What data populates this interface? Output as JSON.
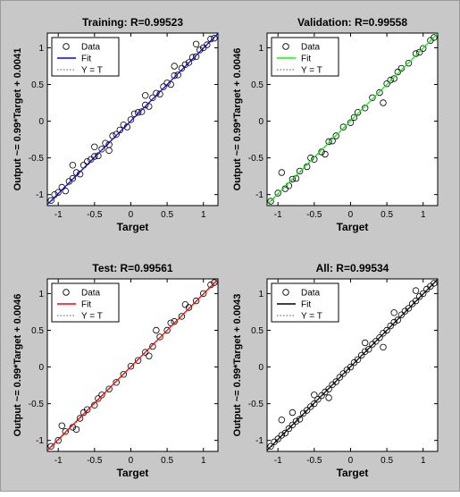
{
  "figure": {
    "background": "#c8c8c8"
  },
  "panels": [
    {
      "title": "Training: R=0.99523",
      "ylabel": "Output ~= 0.99*Target + 0.0041",
      "xlabel": "Target",
      "fit_color": "#0000ff",
      "legend": [
        "Data",
        "Fit",
        "Y = T"
      ]
    },
    {
      "title": "Validation: R=0.99558",
      "ylabel": "Output ~= 0.99*Target + 0.0046",
      "xlabel": "Target",
      "fit_color": "#00ff00",
      "legend": [
        "Data",
        "Fit",
        "Y = T"
      ]
    },
    {
      "title": "Test: R=0.99561",
      "ylabel": "Output ~= 0.99*Target + 0.0046",
      "xlabel": "Target",
      "fit_color": "#ff0000",
      "legend": [
        "Data",
        "Fit",
        "Y = T"
      ]
    },
    {
      "title": "All: R=0.99534",
      "ylabel": "Output ~= 0.99*Target + 0.0043",
      "xlabel": "Target",
      "fit_color": "#000000",
      "legend": [
        "Data",
        "Fit",
        "Y = T"
      ]
    }
  ],
  "chart_data": [
    {
      "type": "scatter",
      "title": "Training: R=0.99523",
      "xlabel": "Target",
      "ylabel": "Output ~= 0.99*Target + 0.0041",
      "xlim": [
        -1.15,
        1.2
      ],
      "ylim": [
        -1.15,
        1.2
      ],
      "xticks": [
        -1,
        -0.5,
        0,
        0.5,
        1
      ],
      "yticks": [
        -1,
        -0.5,
        0,
        0.5,
        1
      ],
      "fit": {
        "slope": 0.99,
        "intercept": 0.0041
      },
      "identity_line": true,
      "grid": false,
      "legend_position": "top-left",
      "series": [
        {
          "name": "Data",
          "points": [
            [
              -1.1,
              -1.08
            ],
            [
              -1.05,
              -1.0
            ],
            [
              -1.0,
              -0.97
            ],
            [
              -0.95,
              -0.9
            ],
            [
              -0.9,
              -0.95
            ],
            [
              -0.85,
              -0.82
            ],
            [
              -0.8,
              -0.78
            ],
            [
              -0.75,
              -0.7
            ],
            [
              -0.7,
              -0.72
            ],
            [
              -0.65,
              -0.6
            ],
            [
              -0.6,
              -0.55
            ],
            [
              -0.55,
              -0.52
            ],
            [
              -0.5,
              -0.48
            ],
            [
              -0.45,
              -0.47
            ],
            [
              -0.4,
              -0.38
            ],
            [
              -0.35,
              -0.3
            ],
            [
              -0.3,
              -0.32
            ],
            [
              -0.25,
              -0.2
            ],
            [
              -0.2,
              -0.18
            ],
            [
              -0.15,
              -0.12
            ],
            [
              -0.1,
              -0.05
            ],
            [
              -0.05,
              -0.08
            ],
            [
              0.0,
              0.02
            ],
            [
              0.05,
              0.1
            ],
            [
              0.1,
              0.12
            ],
            [
              0.15,
              0.13
            ],
            [
              0.2,
              0.22
            ],
            [
              0.25,
              0.2
            ],
            [
              0.3,
              0.32
            ],
            [
              0.35,
              0.38
            ],
            [
              0.4,
              0.37
            ],
            [
              0.45,
              0.47
            ],
            [
              0.5,
              0.52
            ],
            [
              0.55,
              0.5
            ],
            [
              0.6,
              0.62
            ],
            [
              0.65,
              0.63
            ],
            [
              0.7,
              0.72
            ],
            [
              0.75,
              0.77
            ],
            [
              0.8,
              0.8
            ],
            [
              0.85,
              0.87
            ],
            [
              0.9,
              0.88
            ],
            [
              0.95,
              0.97
            ],
            [
              1.0,
              1.0
            ],
            [
              1.05,
              1.04
            ],
            [
              1.1,
              1.12
            ],
            [
              1.15,
              1.13
            ],
            [
              -0.5,
              -0.35
            ],
            [
              -0.3,
              -0.4
            ],
            [
              0.2,
              0.35
            ],
            [
              0.6,
              0.75
            ],
            [
              -0.8,
              -0.6
            ],
            [
              0.9,
              1.05
            ]
          ]
        }
      ]
    },
    {
      "type": "scatter",
      "title": "Validation: R=0.99558",
      "xlabel": "Target",
      "ylabel": "Output ~= 0.99*Target + 0.0046",
      "xlim": [
        -1.15,
        1.2
      ],
      "ylim": [
        -1.15,
        1.2
      ],
      "xticks": [
        -1,
        -0.5,
        0,
        0.5,
        1
      ],
      "yticks": [
        -1,
        -0.5,
        0,
        0.5,
        1
      ],
      "fit": {
        "slope": 0.99,
        "intercept": 0.0046
      },
      "identity_line": true,
      "grid": false,
      "legend_position": "top-left",
      "series": [
        {
          "name": "Data",
          "points": [
            [
              -1.1,
              -1.09
            ],
            [
              -1.0,
              -0.98
            ],
            [
              -0.9,
              -0.92
            ],
            [
              -0.8,
              -0.79
            ],
            [
              -0.75,
              -0.78
            ],
            [
              -0.7,
              -0.68
            ],
            [
              -0.6,
              -0.62
            ],
            [
              -0.55,
              -0.5
            ],
            [
              -0.5,
              -0.52
            ],
            [
              -0.4,
              -0.42
            ],
            [
              -0.3,
              -0.28
            ],
            [
              -0.25,
              -0.27
            ],
            [
              -0.2,
              -0.2
            ],
            [
              -0.1,
              -0.08
            ],
            [
              0.0,
              -0.02
            ],
            [
              0.05,
              0.05
            ],
            [
              0.1,
              0.12
            ],
            [
              0.2,
              0.18
            ],
            [
              0.3,
              0.32
            ],
            [
              0.4,
              0.39
            ],
            [
              0.5,
              0.51
            ],
            [
              0.55,
              0.56
            ],
            [
              0.6,
              0.58
            ],
            [
              0.7,
              0.72
            ],
            [
              0.8,
              0.79
            ],
            [
              0.9,
              0.92
            ],
            [
              1.0,
              0.99
            ],
            [
              1.1,
              1.1
            ],
            [
              1.15,
              1.14
            ],
            [
              -0.95,
              -0.7
            ],
            [
              0.45,
              0.25
            ],
            [
              -0.35,
              -0.45
            ],
            [
              -0.85,
              -0.88
            ],
            [
              0.65,
              0.67
            ],
            [
              0.95,
              0.94
            ]
          ]
        }
      ]
    },
    {
      "type": "scatter",
      "title": "Test: R=0.99561",
      "xlabel": "Target",
      "ylabel": "Output ~= 0.99*Target + 0.0046",
      "xlim": [
        -1.15,
        1.2
      ],
      "ylim": [
        -1.15,
        1.2
      ],
      "xticks": [
        -1,
        -0.5,
        0,
        0.5,
        1
      ],
      "yticks": [
        -1,
        -0.5,
        0,
        0.5,
        1
      ],
      "fit": {
        "slope": 0.99,
        "intercept": 0.0046
      },
      "identity_line": true,
      "grid": false,
      "legend_position": "top-left",
      "series": [
        {
          "name": "Data",
          "points": [
            [
              -1.1,
              -1.08
            ],
            [
              -1.0,
              -1.0
            ],
            [
              -0.9,
              -0.88
            ],
            [
              -0.8,
              -0.82
            ],
            [
              -0.7,
              -0.7
            ],
            [
              -0.65,
              -0.62
            ],
            [
              -0.6,
              -0.58
            ],
            [
              -0.5,
              -0.52
            ],
            [
              -0.45,
              -0.43
            ],
            [
              -0.4,
              -0.38
            ],
            [
              -0.3,
              -0.3
            ],
            [
              -0.2,
              -0.21
            ],
            [
              -0.1,
              -0.1
            ],
            [
              0.0,
              0.01
            ],
            [
              0.1,
              0.09
            ],
            [
              0.2,
              0.2
            ],
            [
              0.3,
              0.28
            ],
            [
              0.4,
              0.41
            ],
            [
              0.5,
              0.5
            ],
            [
              0.55,
              0.6
            ],
            [
              0.6,
              0.62
            ],
            [
              0.7,
              0.69
            ],
            [
              0.8,
              0.81
            ],
            [
              0.9,
              0.9
            ],
            [
              1.0,
              1.0
            ],
            [
              1.1,
              1.12
            ],
            [
              1.15,
              1.15
            ],
            [
              -0.75,
              -0.85
            ],
            [
              0.35,
              0.5
            ],
            [
              -0.95,
              -0.8
            ],
            [
              0.75,
              0.85
            ],
            [
              0.25,
              0.15
            ]
          ]
        }
      ]
    },
    {
      "type": "scatter",
      "title": "All: R=0.99534",
      "xlabel": "Target",
      "ylabel": "Output ~= 0.99*Target + 0.0043",
      "xlim": [
        -1.15,
        1.2
      ],
      "ylim": [
        -1.15,
        1.2
      ],
      "xticks": [
        -1,
        -0.5,
        0,
        0.5,
        1
      ],
      "yticks": [
        -1,
        -0.5,
        0,
        0.5,
        1
      ],
      "fit": {
        "slope": 0.99,
        "intercept": 0.0043
      },
      "identity_line": true,
      "grid": false,
      "legend_position": "top-left",
      "series": [
        {
          "name": "Data",
          "points": [
            [
              -1.1,
              -1.08
            ],
            [
              -1.05,
              -1.02
            ],
            [
              -1.0,
              -0.98
            ],
            [
              -0.95,
              -0.93
            ],
            [
              -0.9,
              -0.9
            ],
            [
              -0.85,
              -0.84
            ],
            [
              -0.8,
              -0.79
            ],
            [
              -0.75,
              -0.74
            ],
            [
              -0.7,
              -0.71
            ],
            [
              -0.65,
              -0.63
            ],
            [
              -0.6,
              -0.59
            ],
            [
              -0.55,
              -0.54
            ],
            [
              -0.5,
              -0.5
            ],
            [
              -0.45,
              -0.44
            ],
            [
              -0.4,
              -0.39
            ],
            [
              -0.35,
              -0.34
            ],
            [
              -0.3,
              -0.3
            ],
            [
              -0.25,
              -0.24
            ],
            [
              -0.2,
              -0.2
            ],
            [
              -0.15,
              -0.14
            ],
            [
              -0.1,
              -0.09
            ],
            [
              -0.05,
              -0.04
            ],
            [
              0.0,
              0.0
            ],
            [
              0.05,
              0.06
            ],
            [
              0.1,
              0.1
            ],
            [
              0.15,
              0.16
            ],
            [
              0.2,
              0.21
            ],
            [
              0.25,
              0.24
            ],
            [
              0.3,
              0.31
            ],
            [
              0.35,
              0.35
            ],
            [
              0.4,
              0.4
            ],
            [
              0.45,
              0.46
            ],
            [
              0.5,
              0.5
            ],
            [
              0.55,
              0.56
            ],
            [
              0.6,
              0.61
            ],
            [
              0.65,
              0.64
            ],
            [
              0.7,
              0.71
            ],
            [
              0.75,
              0.76
            ],
            [
              0.8,
              0.8
            ],
            [
              0.85,
              0.86
            ],
            [
              0.9,
              0.9
            ],
            [
              0.95,
              0.96
            ],
            [
              1.0,
              1.0
            ],
            [
              1.05,
              1.06
            ],
            [
              1.1,
              1.1
            ],
            [
              1.15,
              1.14
            ],
            [
              -0.5,
              -0.38
            ],
            [
              -0.3,
              -0.42
            ],
            [
              0.2,
              0.33
            ],
            [
              0.6,
              0.74
            ],
            [
              -0.8,
              -0.62
            ],
            [
              0.9,
              1.04
            ],
            [
              -0.95,
              -0.72
            ],
            [
              0.45,
              0.27
            ]
          ]
        }
      ]
    }
  ]
}
